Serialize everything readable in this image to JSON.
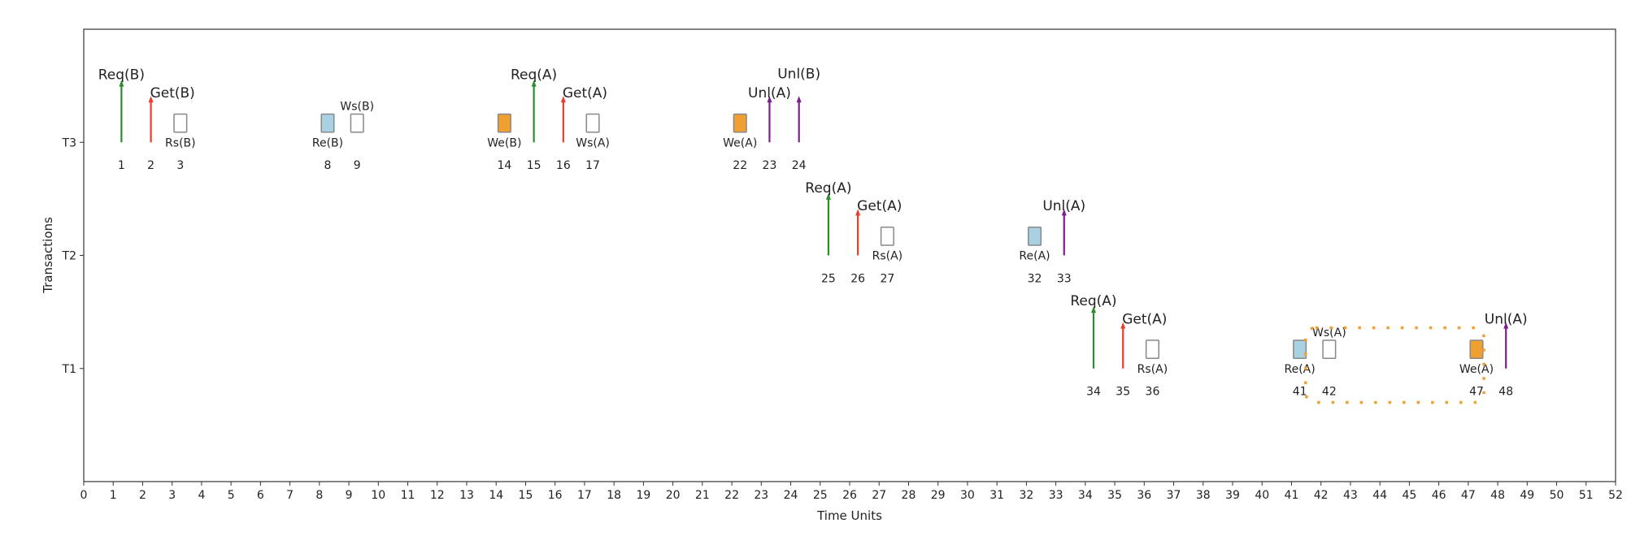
{
  "chart_data": {
    "type": "timeline",
    "title": "",
    "xlabel": "Time Units",
    "ylabel": "Transactions",
    "xlim": [
      0,
      52
    ],
    "ylim": [
      0,
      4
    ],
    "xticks": [
      0,
      1,
      2,
      3,
      4,
      5,
      6,
      7,
      8,
      9,
      10,
      11,
      12,
      13,
      14,
      15,
      16,
      17,
      18,
      19,
      20,
      21,
      22,
      23,
      24,
      25,
      26,
      27,
      28,
      29,
      30,
      31,
      32,
      33,
      34,
      35,
      36,
      37,
      38,
      39,
      40,
      41,
      42,
      43,
      44,
      45,
      46,
      47,
      48,
      49,
      50,
      51,
      52
    ],
    "yticks": [
      {
        "label": "T1",
        "value": 1
      },
      {
        "label": "T2",
        "value": 2
      },
      {
        "label": "T3",
        "value": 3
      }
    ],
    "grid": false,
    "colors": {
      "Req": "#2e8b2e",
      "Get": "#ee3b2b",
      "Unl": "#7b1f8a",
      "Re": "#a9d1e2",
      "We": "#f0a030",
      "Rs": "#ffffff",
      "Ws": "#ffffff",
      "highlight": "#f0a030"
    },
    "events": [
      {
        "t": 1,
        "tx": "T3",
        "kind": "Req",
        "label": "Req(B)"
      },
      {
        "t": 2,
        "tx": "T3",
        "kind": "Get",
        "label": "Get(B)"
      },
      {
        "t": 3,
        "tx": "T3",
        "kind": "Rs",
        "label": "Rs(B)"
      },
      {
        "t": 8,
        "tx": "T3",
        "kind": "Re",
        "label": "Re(B)"
      },
      {
        "t": 9,
        "tx": "T3",
        "kind": "Ws",
        "label": "Ws(B)"
      },
      {
        "t": 14,
        "tx": "T3",
        "kind": "We",
        "label": "We(B)"
      },
      {
        "t": 15,
        "tx": "T3",
        "kind": "Req",
        "label": "Req(A)"
      },
      {
        "t": 16,
        "tx": "T3",
        "kind": "Get",
        "label": "Get(A)"
      },
      {
        "t": 17,
        "tx": "T3",
        "kind": "Ws",
        "label": "Ws(A)"
      },
      {
        "t": 22,
        "tx": "T3",
        "kind": "We",
        "label": "We(A)"
      },
      {
        "t": 23,
        "tx": "T3",
        "kind": "Unl",
        "label": "Unl(A)"
      },
      {
        "t": 24,
        "tx": "T3",
        "kind": "Unl",
        "label": "Unl(B)"
      },
      {
        "t": 25,
        "tx": "T2",
        "kind": "Req",
        "label": "Req(A)"
      },
      {
        "t": 26,
        "tx": "T2",
        "kind": "Get",
        "label": "Get(A)"
      },
      {
        "t": 27,
        "tx": "T2",
        "kind": "Rs",
        "label": "Rs(A)"
      },
      {
        "t": 32,
        "tx": "T2",
        "kind": "Re",
        "label": "Re(A)"
      },
      {
        "t": 33,
        "tx": "T2",
        "kind": "Unl",
        "label": "Unl(A)"
      },
      {
        "t": 34,
        "tx": "T1",
        "kind": "Req",
        "label": "Req(A)"
      },
      {
        "t": 35,
        "tx": "T1",
        "kind": "Get",
        "label": "Get(A)"
      },
      {
        "t": 36,
        "tx": "T1",
        "kind": "Rs",
        "label": "Rs(A)"
      },
      {
        "t": 41,
        "tx": "T1",
        "kind": "Re",
        "label": "Re(A)"
      },
      {
        "t": 42,
        "tx": "T1",
        "kind": "Ws",
        "label": "Ws(A)"
      },
      {
        "t": 47,
        "tx": "T1",
        "kind": "We",
        "label": "We(A)"
      },
      {
        "t": 48,
        "tx": "T1",
        "kind": "Unl",
        "label": "Unl(A)"
      }
    ],
    "highlight_region": {
      "tx": "T1",
      "from_event": 42,
      "to_event": 47,
      "style": "dotted"
    }
  }
}
